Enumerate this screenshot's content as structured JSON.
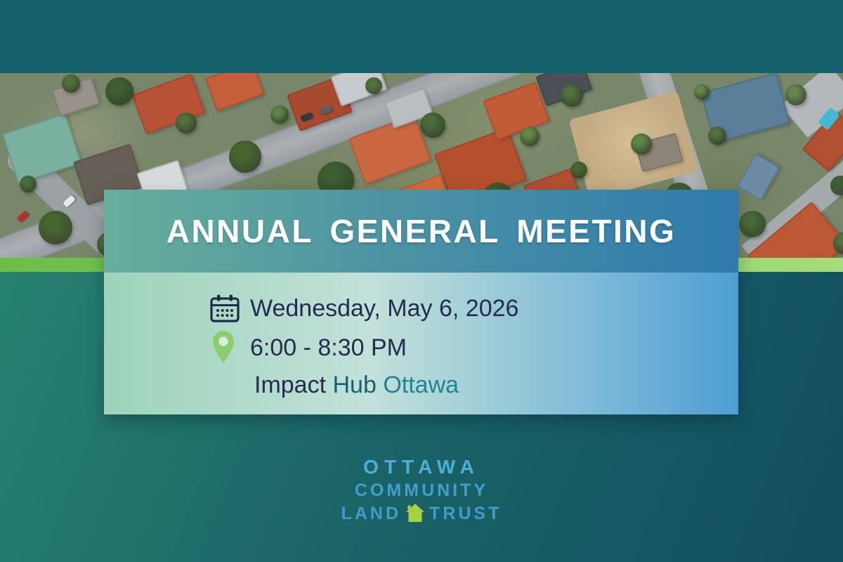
{
  "event": {
    "title": "ANNUAL GENERAL MEETING",
    "date": "Wednesday, May 6, 2026",
    "time": "6:00 - 8:30 PM",
    "venue_impact": "Impact",
    "venue_hub": "Hub",
    "venue_city": "Ottawa"
  },
  "org": {
    "name_line1": "OTTAWA",
    "name_line2": "COMMUNITY",
    "name_line3_left": "LAND",
    "name_line3_right": "TRUST"
  },
  "icons": {
    "calendar": "calendar-icon",
    "location": "location-pin-icon",
    "house": "house-icon"
  },
  "colors": {
    "top_band_teal": "#14606a",
    "bottom_grad_left": "#27826f",
    "bottom_grad_right": "#114e60",
    "stripe_green_left": "#6cbd47",
    "stripe_green_right": "#a6dc7d",
    "title_grad_left": "#68ae9b",
    "title_grad_right": "#2e7aac",
    "details_grad_left": "#9ed3ba",
    "details_grad_right": "#4e9ed3",
    "detail_text_navy": "#232c4c",
    "venue_hub_teal": "#175f74",
    "venue_city_teal": "#208495",
    "pin_green": "#8bce6c",
    "logo_blue": "#4db0d6",
    "logo_house_green": "#a6d23f",
    "title_text": "#ffffff"
  }
}
